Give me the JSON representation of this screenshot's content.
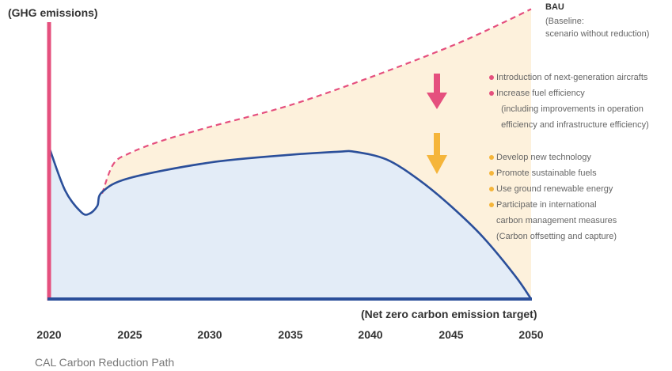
{
  "chart_data": {
    "type": "area",
    "ylabel": "(GHG emissions)",
    "x_ticks": [
      "2020",
      "2025",
      "2030",
      "2035",
      "2040",
      "2045",
      "2050"
    ],
    "xlim": [
      2020,
      2050
    ],
    "grid": false,
    "series": [
      {
        "name": "BAU",
        "style": "dashed",
        "color": "#e5507e",
        "x": [
          2023.3,
          2024,
          2025,
          2027,
          2030,
          2035,
          2040,
          2045,
          2048,
          2050
        ],
        "y": [
          0.68,
          0.87,
          0.94,
          1.02,
          1.11,
          1.25,
          1.43,
          1.63,
          1.77,
          1.87
        ]
      },
      {
        "name": "CAL Carbon Reduction Path",
        "style": "solid",
        "color": "#2b4f9a",
        "x": [
          2020,
          2021,
          2022,
          2022.5,
          2023,
          2023.3,
          2025,
          2030,
          2035,
          2038,
          2039,
          2041,
          2043,
          2045,
          2047,
          2049,
          2050
        ],
        "y": [
          0.98,
          0.7,
          0.56,
          0.55,
          0.6,
          0.69,
          0.78,
          0.88,
          0.93,
          0.95,
          0.95,
          0.9,
          0.77,
          0.6,
          0.4,
          0.15,
          0.0
        ]
      }
    ],
    "bau_label": {
      "title": "BAU",
      "subtitle": "(Baseline:\nscenario without reduction)"
    },
    "measures_group_1": {
      "color": "#e5507e",
      "items": [
        "Introduction of next-generation aircrafts",
        "Increase fuel efficiency\n  (including improvements in operation\n  efficiency and infrastructure efficiency)"
      ]
    },
    "measures_group_2": {
      "color": "#f5b53a",
      "items": [
        "Develop new technology",
        "Promote sustainable fuels",
        "Use ground renewable energy",
        "Participate in international\ncarbon management measures\n(Carbon offsetting and capture)"
      ]
    },
    "target_annotation": "(Net zero carbon emission target)",
    "caption": "CAL Carbon Reduction Path",
    "colors": {
      "gap_fill": "#fdf1dc",
      "path_fill": "#e3ecf7",
      "axis": "#2b4f9a",
      "y_axis": "#e5507e"
    }
  }
}
